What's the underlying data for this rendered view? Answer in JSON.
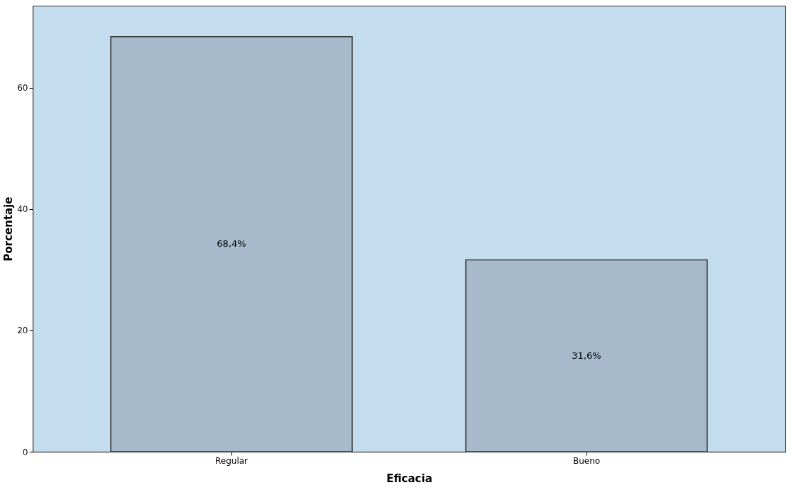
{
  "chart_data": {
    "type": "bar",
    "xlabel": "Eficacia",
    "ylabel": "Porcentaje",
    "categories": [
      "Regular",
      "Bueno"
    ],
    "values": [
      68.4,
      31.6
    ],
    "value_labels": [
      "68,4%",
      "31,6%"
    ],
    "color": "#a6bacb",
    "ylim": [
      0,
      73.5
    ],
    "yticks": [
      0,
      20,
      40,
      60
    ],
    "grid": false
  }
}
